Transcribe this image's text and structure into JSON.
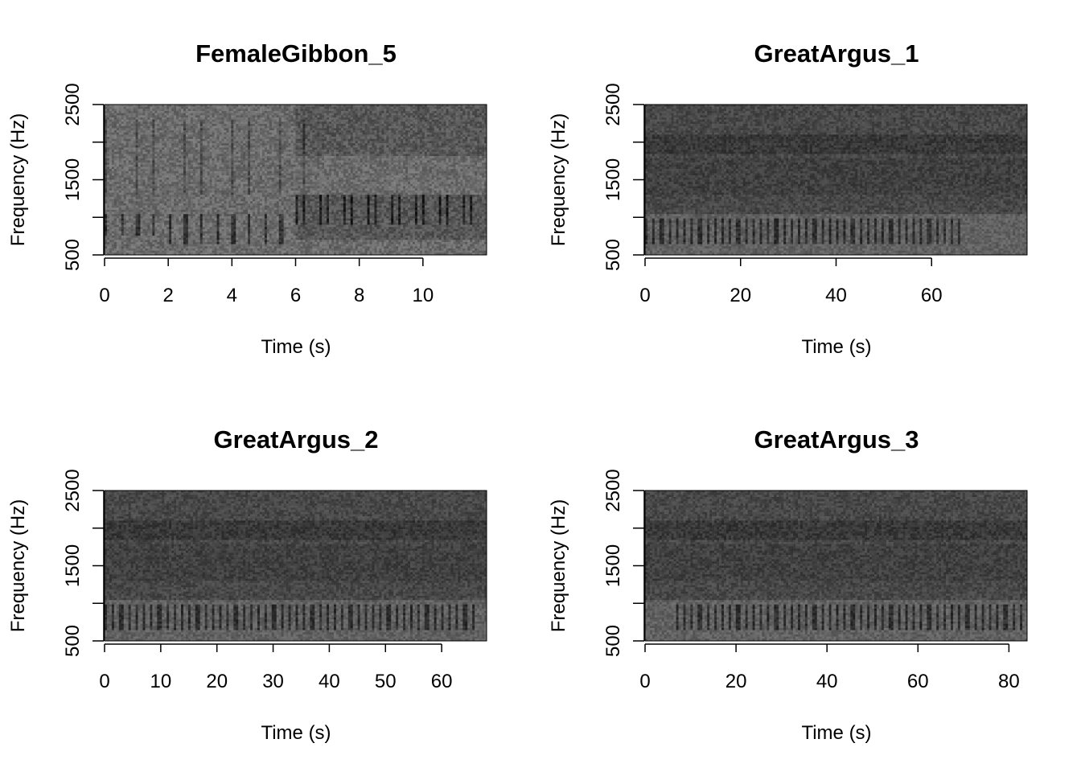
{
  "chart_data": [
    {
      "type": "heatmap",
      "title": "FemaleGibbon_5",
      "xlabel": "Time (s)",
      "ylabel": "Frequency (Hz)",
      "xlim": [
        0,
        12
      ],
      "ylim": [
        500,
        2500
      ],
      "x_ticks": [
        "0",
        "2",
        "4",
        "6",
        "8",
        "10"
      ],
      "x_tick_values": [
        0,
        2,
        4,
        6,
        8,
        10
      ],
      "y_ticks": [
        "500",
        "1500",
        "2500"
      ],
      "y_tick_values": [
        500,
        1000,
        1500,
        2000,
        2500
      ],
      "colormap": "grayscale",
      "pattern": "gibbon"
    },
    {
      "type": "heatmap",
      "title": "GreatArgus_1",
      "xlabel": "Time (s)",
      "ylabel": "Frequency (Hz)",
      "xlim": [
        0,
        80
      ],
      "ylim": [
        500,
        2500
      ],
      "x_ticks": [
        "0",
        "20",
        "40",
        "60"
      ],
      "x_tick_values": [
        0,
        20,
        40,
        60
      ],
      "y_ticks": [
        "500",
        "1500",
        "2500"
      ],
      "y_tick_values": [
        500,
        1000,
        1500,
        2000,
        2500
      ],
      "colormap": "grayscale",
      "pattern": "argus"
    },
    {
      "type": "heatmap",
      "title": "GreatArgus_2",
      "xlabel": "Time (s)",
      "ylabel": "Frequency (Hz)",
      "xlim": [
        0,
        68
      ],
      "ylim": [
        500,
        2500
      ],
      "x_ticks": [
        "0",
        "10",
        "20",
        "30",
        "40",
        "50",
        "60"
      ],
      "x_tick_values": [
        0,
        10,
        20,
        30,
        40,
        50,
        60
      ],
      "y_ticks": [
        "500",
        "1500",
        "2500"
      ],
      "y_tick_values": [
        500,
        1000,
        1500,
        2000,
        2500
      ],
      "colormap": "grayscale",
      "pattern": "argus"
    },
    {
      "type": "heatmap",
      "title": "GreatArgus_3",
      "xlabel": "Time (s)",
      "ylabel": "Frequency (Hz)",
      "xlim": [
        0,
        84
      ],
      "ylim": [
        500,
        2500
      ],
      "x_ticks": [
        "0",
        "20",
        "40",
        "60",
        "80"
      ],
      "x_tick_values": [
        0,
        20,
        40,
        60,
        80
      ],
      "y_ticks": [
        "500",
        "1500",
        "2500"
      ],
      "y_tick_values": [
        500,
        1000,
        1500,
        2000,
        2500
      ],
      "colormap": "grayscale",
      "pattern": "argus"
    }
  ]
}
